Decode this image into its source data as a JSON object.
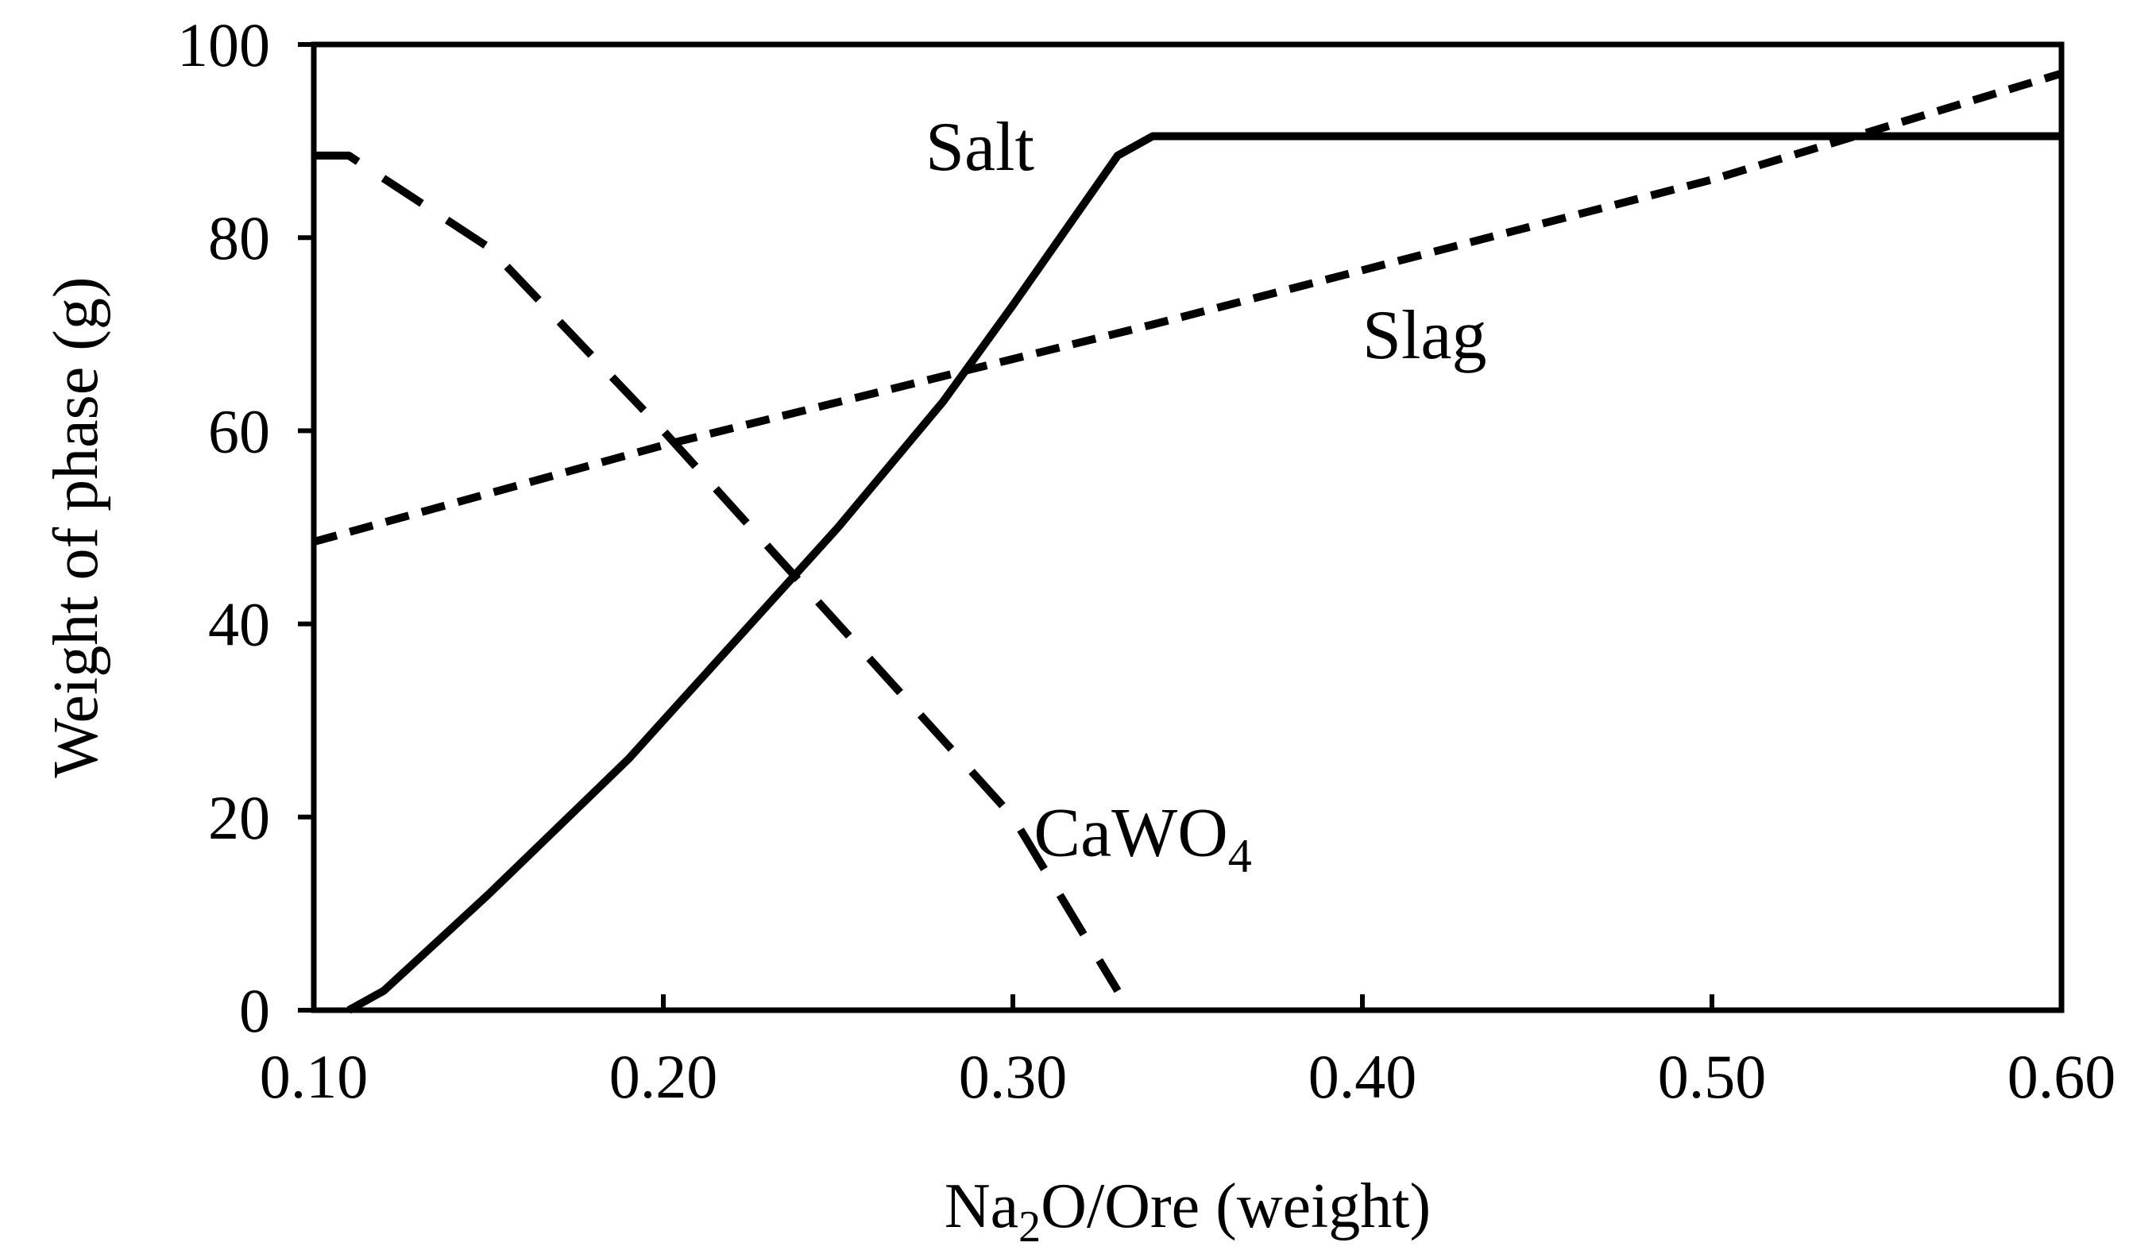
{
  "chart_data": {
    "type": "line",
    "title": "",
    "xlabel": {
      "pre": "Na",
      "sub": "2",
      "post": "O/Ore (weight)"
    },
    "ylabel": "Weight of phase (g)",
    "xlim": [
      0.1,
      0.6
    ],
    "ylim": [
      0,
      100
    ],
    "xticks": [
      0.1,
      0.2,
      0.3,
      0.4,
      0.5,
      0.6
    ],
    "xtick_labels": [
      "0.10",
      "0.20",
      "0.30",
      "0.40",
      "0.50",
      "0.60"
    ],
    "yticks": [
      0,
      20,
      40,
      60,
      80,
      100
    ],
    "ytick_labels": [
      "0",
      "20",
      "40",
      "60",
      "80",
      "100"
    ],
    "grid": false,
    "line_color": "#000000",
    "series": [
      {
        "name": "Salt",
        "label": {
          "pre": "Salt",
          "sub": ""
        },
        "style": "solid",
        "x": [
          0.11,
          0.12,
          0.15,
          0.19,
          0.22,
          0.25,
          0.28,
          0.3,
          0.33,
          0.34,
          0.6
        ],
        "y": [
          0,
          2,
          12,
          26,
          38,
          50,
          63,
          73,
          88.5,
          90.5,
          90.5
        ]
      },
      {
        "name": "Slag",
        "label": {
          "pre": "Slag",
          "sub": ""
        },
        "style": "short-dash",
        "x": [
          0.1,
          0.2,
          0.34,
          0.5,
          0.6
        ],
        "y": [
          48.5,
          58.5,
          71,
          86,
          97
        ]
      },
      {
        "name": "CaWO4",
        "label": {
          "pre": "CaWO",
          "sub": "4"
        },
        "style": "long-dash",
        "x": [
          0.1,
          0.11,
          0.15,
          0.2,
          0.25,
          0.3,
          0.33
        ],
        "y": [
          88.5,
          88.5,
          79,
          60,
          40,
          20,
          2
        ]
      }
    ]
  }
}
